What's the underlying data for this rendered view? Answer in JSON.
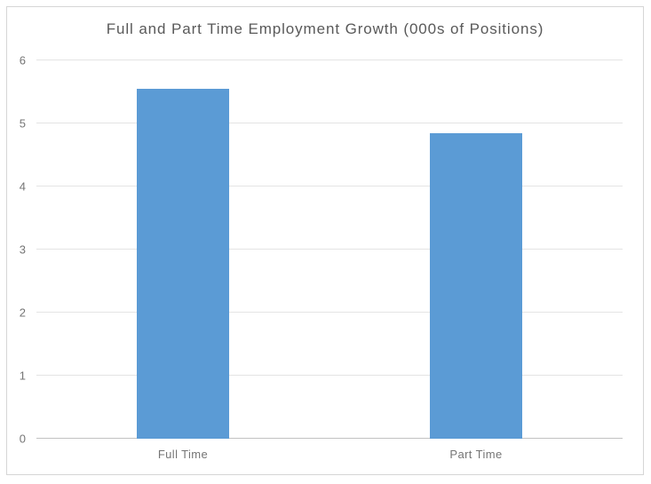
{
  "chart_data": {
    "type": "bar",
    "title": "Full and Part Time Employment Growth (000s of Positions)",
    "categories": [
      "Full Time",
      "Part Time"
    ],
    "values": [
      5.55,
      4.85
    ],
    "xlabel": "",
    "ylabel": "",
    "ylim": [
      0,
      6
    ],
    "ytick_step": 1,
    "ytick_labels": [
      "0",
      "1",
      "2",
      "3",
      "4",
      "5",
      "6"
    ],
    "grid": true,
    "legend": false,
    "bar_color": "#5b9bd5",
    "colors": {
      "bar": "#5b9bd5",
      "title_text": "#595959",
      "axis_text": "#757575",
      "gridline": "#e4e4e4",
      "axis_line": "#c2c2c2",
      "frame_border": "#d6d6d6",
      "background": "#ffffff"
    }
  }
}
